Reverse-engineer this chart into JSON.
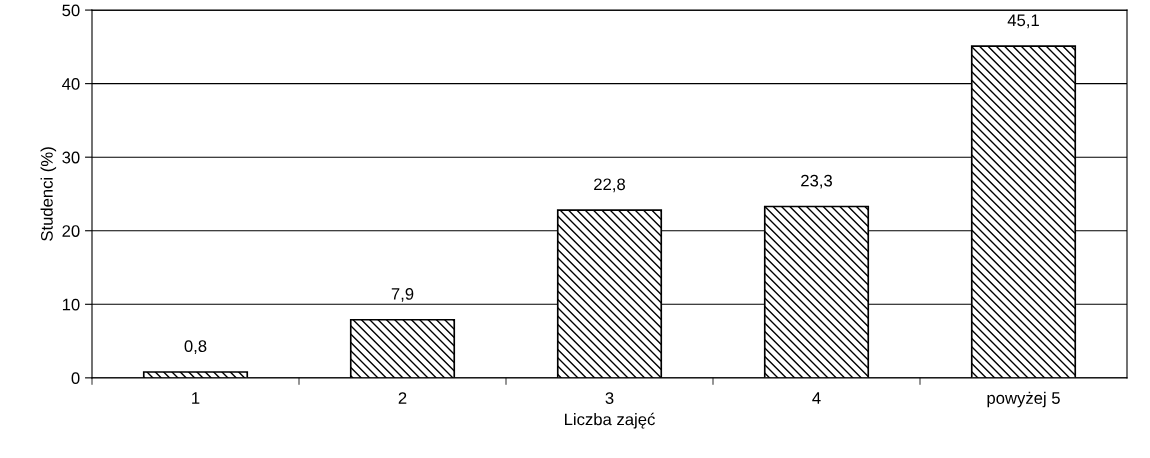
{
  "chart_data": {
    "type": "bar",
    "xlabel": "Liczba zajęć",
    "ylabel": "Studenci (%)",
    "categories": [
      "1",
      "2",
      "3",
      "4",
      "powyżej 5"
    ],
    "values": [
      0.8,
      7.9,
      22.8,
      23.3,
      45.1
    ],
    "value_labels": [
      "0,8",
      "7,9",
      "22,8",
      "23,3",
      "45,1"
    ],
    "color": "#000000",
    "ylim": [
      0,
      50
    ],
    "yticks": [
      0,
      10,
      20,
      30,
      40,
      50
    ],
    "grid": "y"
  }
}
